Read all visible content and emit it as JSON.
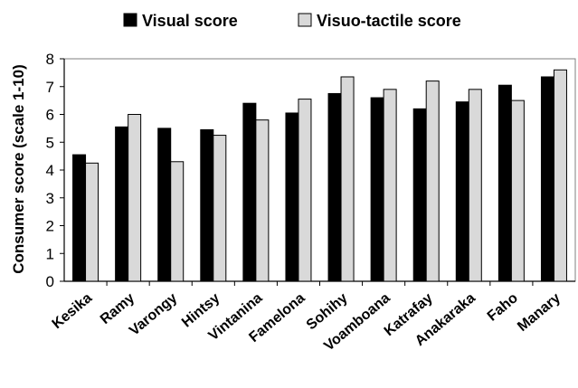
{
  "chart_data": {
    "type": "bar",
    "title": "",
    "xlabel": "",
    "ylabel": "Consumer score (scale 1-10)",
    "ylim": [
      0,
      8
    ],
    "yticks": [
      "0",
      "1",
      "2",
      "3",
      "4",
      "5",
      "6",
      "7",
      "8"
    ],
    "grid": false,
    "legend_position": "top",
    "categories": [
      "Kesika",
      "Ramy",
      "Varongy",
      "Hintsy",
      "Vintanina",
      "Famelona",
      "Sohihy",
      "Voamboana",
      "Katrafay",
      "Anakaraka",
      "Faho",
      "Manary"
    ],
    "series": [
      {
        "name": "Visual score",
        "color": "#000000",
        "values": [
          4.55,
          5.55,
          5.5,
          5.45,
          6.4,
          6.05,
          6.75,
          6.6,
          6.2,
          6.45,
          7.05,
          7.35
        ]
      },
      {
        "name": "Visuo-tactile score",
        "color": "#d9d9d9",
        "values": [
          4.25,
          6.0,
          4.3,
          5.25,
          5.8,
          6.55,
          7.35,
          6.9,
          7.2,
          6.9,
          6.5,
          7.6
        ]
      }
    ]
  }
}
